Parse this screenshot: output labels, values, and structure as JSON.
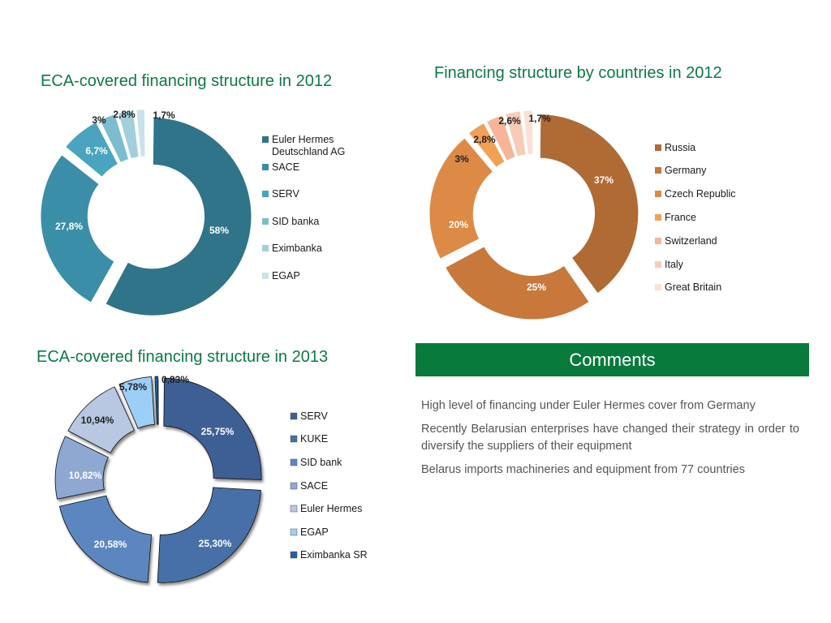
{
  "chart_data": [
    {
      "type": "pie",
      "title": "ECA-covered financing structure in 2012",
      "categories": [
        "Euler Hermes Deutschland AG",
        "SACE",
        "SERV",
        "SID banka",
        "Eximbanka",
        "EGAP"
      ],
      "values": [
        58,
        27.8,
        6.7,
        3,
        2.8,
        1.7
      ],
      "labels": [
        "58%",
        "27,8%",
        "6,7%",
        "3%",
        "2,8%",
        "1,7%"
      ],
      "colors": [
        "#2f7488",
        "#3b8ea7",
        "#4aa4bf",
        "#7cbccf",
        "#a3cfdc",
        "#c9e2ea"
      ],
      "legend_position": "right",
      "style": "donut"
    },
    {
      "type": "pie",
      "title": "Financing structure by countries in 2012",
      "categories": [
        "Russia",
        "Germany",
        "Czech Republic",
        "France",
        "Switzerland",
        "Italy",
        "Great Britain"
      ],
      "values": [
        37,
        25,
        20,
        3,
        2.8,
        2.6,
        1.7
      ],
      "labels": [
        "37%",
        "25%",
        "20%",
        "3%",
        "2,8%",
        "2,6%",
        "1,7%"
      ],
      "colors": [
        "#b06a33",
        "#c8783a",
        "#dc8a45",
        "#f0a155",
        "#f5b596",
        "#f8cbb5",
        "#fbe0d3"
      ],
      "legend_position": "right",
      "style": "donut"
    },
    {
      "type": "pie",
      "title": "ECA-covered financing structure in 2013",
      "categories": [
        "SERV",
        "KUKE",
        "SID bank",
        "SACE",
        "Euler Hermes",
        "EGAP",
        "Eximbanka SR"
      ],
      "values": [
        25.75,
        25.3,
        20.58,
        10.82,
        10.94,
        5.78,
        0.83
      ],
      "labels": [
        "25,75%",
        "25,30%",
        "20,58%",
        "10,82%",
        "10,94%",
        "5,78%",
        "0,83%"
      ],
      "colors": [
        "#3d5f94",
        "#476fa8",
        "#5b86c0",
        "#8ea8d2",
        "#b8c7e2",
        "#9dcff6",
        "#1f5fa6"
      ],
      "legend_position": "right",
      "style": "donut"
    }
  ],
  "comments": {
    "heading": "Comments",
    "paragraphs": [
      "High level of financing under Euler Hermes cover from Germany",
      "Recently Belarusian enterprises have changed their strategy in order to diversify the suppliers of their equipment",
      "Belarus imports machineries and equipment from 77 countries"
    ]
  }
}
